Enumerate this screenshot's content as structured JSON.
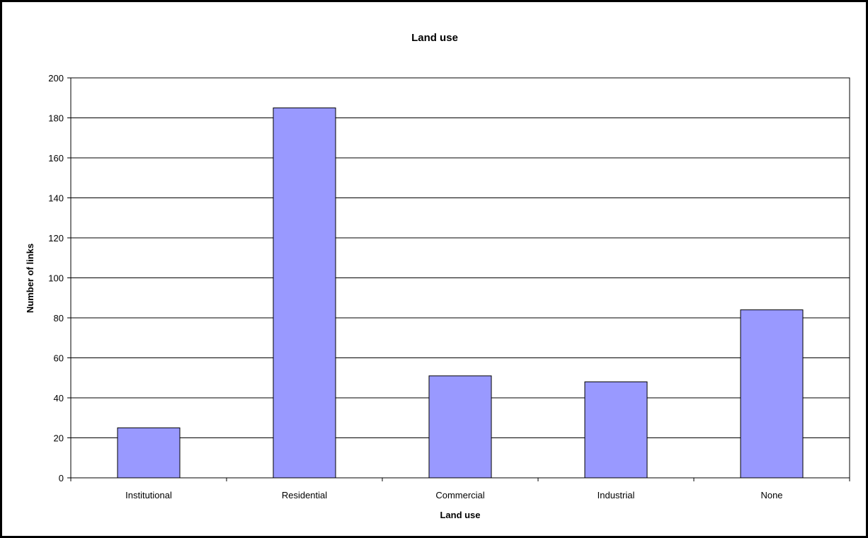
{
  "chart_data": {
    "type": "bar",
    "title": "Land use",
    "xlabel": "Land use",
    "ylabel": "Number of links",
    "categories": [
      "Institutional",
      "Residential",
      "Commercial",
      "Industrial",
      "None"
    ],
    "values": [
      25,
      185,
      51,
      48,
      84
    ],
    "ylim": [
      0,
      200
    ],
    "yticks": [
      "0",
      "20",
      "40",
      "60",
      "80",
      "100",
      "120",
      "140",
      "160",
      "180",
      "200"
    ],
    "grid": true,
    "legend": "none",
    "bar_color": "#9999ff",
    "bar_edge_color": "#000000"
  }
}
